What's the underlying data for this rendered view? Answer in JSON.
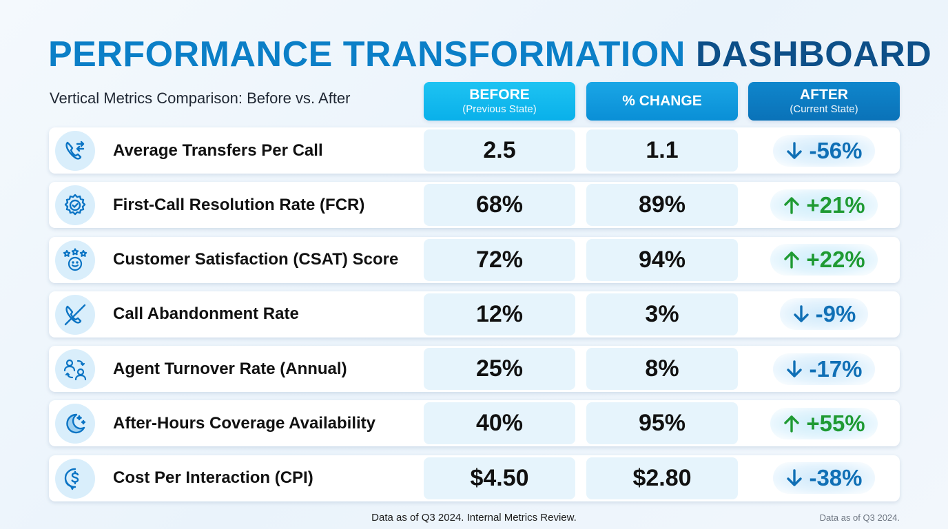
{
  "header": {
    "title_part1": "PERFORMANCE TRANSFORMATION",
    "title_part2": "DASHBOARD",
    "subtitle": "Vertical Metrics Comparison: Before vs. After"
  },
  "columns": [
    {
      "heading": "BEFORE",
      "sub": "(Previous State)"
    },
    {
      "heading": "% CHANGE",
      "sub": ""
    },
    {
      "heading": "AFTER",
      "sub": "(Current State)"
    }
  ],
  "metrics": [
    {
      "icon": "phone-transfer-icon",
      "label": "Average Transfers Per Call",
      "before": "2.5",
      "change": "1.1",
      "after": "-56%",
      "direction": "down"
    },
    {
      "icon": "gear-check-icon",
      "label": "First-Call Resolution Rate (FCR)",
      "before": "68%",
      "change": "89%",
      "after": "+21%",
      "direction": "up"
    },
    {
      "icon": "smiley-stars-icon",
      "label": "Customer Satisfaction (CSAT) Score",
      "before": "72%",
      "change": "94%",
      "after": "+22%",
      "direction": "up"
    },
    {
      "icon": "phone-slash-icon",
      "label": "Call Abandonment Rate",
      "before": "12%",
      "change": "3%",
      "after": "-9%",
      "direction": "down"
    },
    {
      "icon": "people-swap-icon",
      "label": "Agent Turnover Rate (Annual)",
      "before": "25%",
      "change": "8%",
      "after": "-17%",
      "direction": "down"
    },
    {
      "icon": "moon-stars-icon",
      "label": "After-Hours Coverage Availability",
      "before": "40%",
      "change": "95%",
      "after": "+55%",
      "direction": "up"
    },
    {
      "icon": "dollar-chat-icon",
      "label": "Cost Per Interaction (CPI)",
      "before": "$4.50",
      "change": "$2.80",
      "after": "-38%",
      "direction": "down"
    }
  ],
  "colors": {
    "up": "#1f9a33",
    "down": "#0f6fb5",
    "title_light": "#0b7fc7",
    "title_dark": "#0d4f88"
  },
  "footer": {
    "center": "Data as of Q3 2024. Internal Metrics Review.",
    "right": "Data as of Q3 2024."
  },
  "chart_data": {
    "type": "table",
    "columns": [
      "BEFORE",
      "% CHANGE",
      "AFTER"
    ],
    "rows": [
      {
        "metric": "Average Transfers Per Call",
        "values": [
          "2.5",
          "1.1",
          "-56%"
        ]
      },
      {
        "metric": "First-Call Resolution Rate (FCR)",
        "values": [
          "68%",
          "89%",
          "+21%"
        ]
      },
      {
        "metric": "Customer Satisfaction (CSAT) Score",
        "values": [
          "72%",
          "94%",
          "+22%"
        ]
      },
      {
        "metric": "Call Abandonment Rate",
        "values": [
          "12%",
          "3%",
          "-9%"
        ]
      },
      {
        "metric": "Agent Turnover Rate (Annual)",
        "values": [
          "25%",
          "8%",
          "-17%"
        ]
      },
      {
        "metric": "After-Hours Coverage Availability",
        "values": [
          "40%",
          "95%",
          "+55%"
        ]
      },
      {
        "metric": "Cost Per Interaction (CPI)",
        "values": [
          "$4.50",
          "$2.80",
          "-38%"
        ]
      }
    ]
  }
}
